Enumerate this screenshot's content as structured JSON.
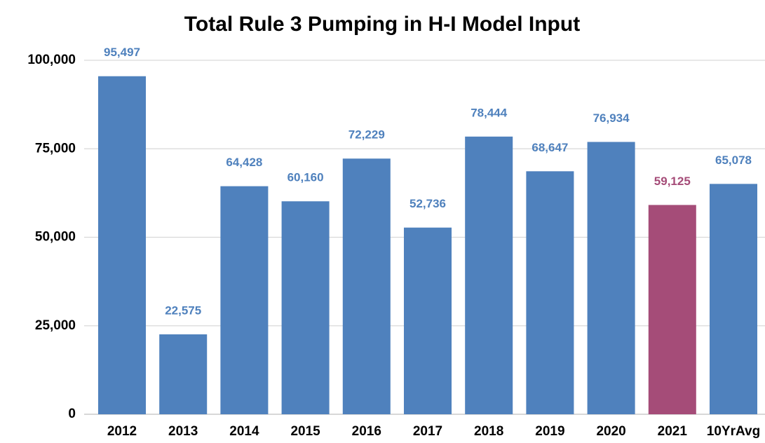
{
  "chart_data": {
    "type": "bar",
    "title": "Total Rule 3 Pumping in H-I Model Input",
    "categories": [
      "2012",
      "2013",
      "2014",
      "2015",
      "2016",
      "2017",
      "2018",
      "2019",
      "2020",
      "2021",
      "10YrAvg"
    ],
    "values": [
      95497,
      22575,
      64428,
      60160,
      72229,
      52736,
      78444,
      68647,
      76934,
      59125,
      65078
    ],
    "value_labels": [
      "95,497",
      "22,575",
      "64,428",
      "60,160",
      "72,229",
      "52,736",
      "78,444",
      "68,647",
      "76,934",
      "59,125",
      "65,078"
    ],
    "colors": [
      "#4f81bd",
      "#4f81bd",
      "#4f81bd",
      "#4f81bd",
      "#4f81bd",
      "#4f81bd",
      "#4f81bd",
      "#4f81bd",
      "#4f81bd",
      "#a54c78",
      "#4f81bd"
    ],
    "ylim": [
      0,
      100000
    ],
    "yticks": [
      0,
      {
        "value": 25000,
        "label": "25,000"
      },
      {
        "value": 50000,
        "label": "50,000"
      },
      {
        "value": 75000,
        "label": "75,000"
      },
      {
        "value": 100000,
        "label": "100,000"
      }
    ],
    "grid": true
  }
}
